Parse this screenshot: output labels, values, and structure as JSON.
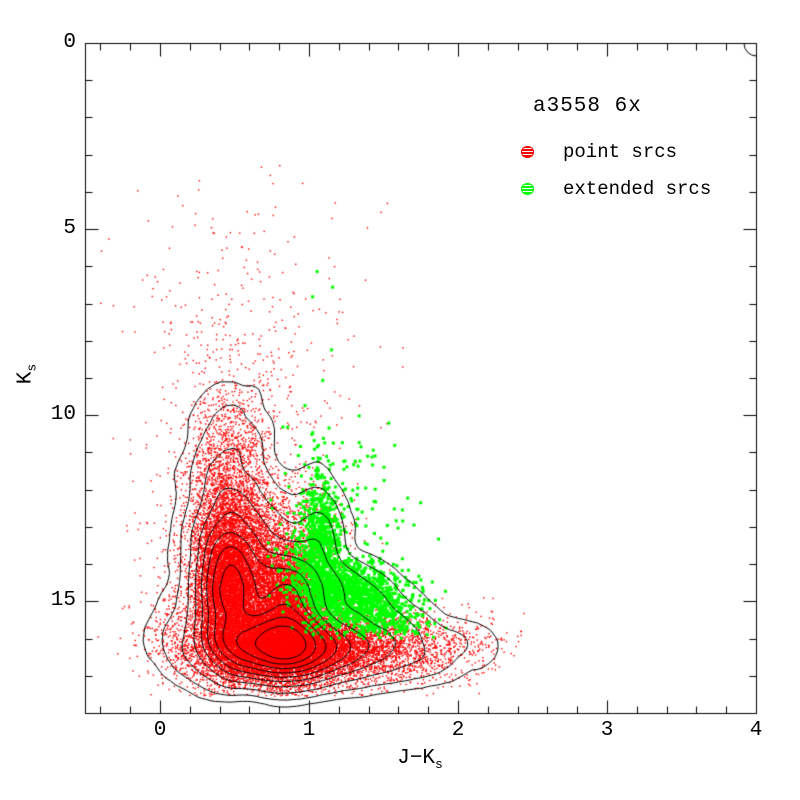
{
  "figure": {
    "background": "#ffffff",
    "frame_color": "#000000"
  },
  "legend": {
    "title": "a3558 6x",
    "items": [
      {
        "label": "point srcs",
        "color": "#ff0000",
        "marker": "striped-circle"
      },
      {
        "label": "extended srcs",
        "color": "#00ff00",
        "marker": "striped-circle"
      }
    ]
  },
  "chart_data": {
    "type": "scatter",
    "title": "a3558 6x",
    "xlabel": "J−Ks",
    "ylabel": "Ks",
    "grid": false,
    "legend_position": "top-right-inside",
    "x_axis": {
      "label_main": "J−K",
      "label_sub": "s",
      "range": [
        -0.5,
        4.0
      ],
      "major_ticks": [
        0,
        1,
        2,
        3,
        4
      ],
      "tick_labels": [
        "0",
        "1",
        "2",
        "3",
        "4"
      ],
      "minor_tick_step": 0.2
    },
    "y_axis": {
      "label_main": "K",
      "label_sub": "s",
      "range": [
        0,
        18
      ],
      "inverted": true,
      "major_ticks": [
        0,
        5,
        10,
        15
      ],
      "tick_labels": [
        "0",
        "5",
        "10",
        "15"
      ],
      "minor_tick_step": 1
    },
    "series": [
      {
        "name": "point srcs",
        "color": "#ff0000",
        "marker_px": 1.4,
        "clip": {
          "x": [
            -0.49,
            2.45
          ],
          "k": [
            3.2,
            17.55
          ]
        },
        "clusters": [
          {
            "n": 520,
            "x": 0.55,
            "sx": 0.42,
            "k": 9.5,
            "sk": 3.0
          },
          {
            "n": 2400,
            "x": 0.46,
            "sx": 0.14,
            "k": 12.3,
            "sk": 1.5
          },
          {
            "n": 7000,
            "x": 0.47,
            "sx": 0.11,
            "k": 14.7,
            "sk": 1.05
          },
          {
            "n": 6200,
            "x": 0.84,
            "sx": 0.13,
            "k": 15.2,
            "sk": 0.95
          },
          {
            "n": 9500,
            "x": 0.8,
            "sx": 0.26,
            "k": 16.25,
            "sk": 0.45
          },
          {
            "n": 3600,
            "x": 1.3,
            "sx": 0.42,
            "k": 16.25,
            "sk": 0.48
          },
          {
            "n": 2200,
            "x": 0.63,
            "sx": 0.26,
            "k": 13.7,
            "sk": 1.1
          },
          {
            "n": 800,
            "x": 0.3,
            "sx": 0.22,
            "k": 15.9,
            "sk": 0.8
          }
        ]
      },
      {
        "name": "extended srcs",
        "color": "#00ff00",
        "marker_px": 3,
        "clip": {
          "x": [
            0.72,
            2.1
          ],
          "k": [
            6.0,
            16.0
          ]
        },
        "clusters": [
          {
            "n": 750,
            "x": 1.07,
            "sx": 0.065,
            "k": 13.5,
            "sk": 1.0,
            "shear": 0
          },
          {
            "n": 1550,
            "x": 1.28,
            "sx": 0.2,
            "k": 14.85,
            "sk": 0.6,
            "shear": 0.18
          },
          {
            "n": 110,
            "x": 1.25,
            "sx": 0.28,
            "k": 12.2,
            "sk": 1.1,
            "shear": 0
          },
          {
            "n": 6,
            "x": 1.12,
            "sx": 0.12,
            "k": 8.3,
            "sk": 1.1,
            "shear": 0
          }
        ]
      }
    ],
    "contours": {
      "color": "#000000",
      "source": "density of all plotted sources",
      "levels_fraction_of_max": [
        0.012,
        0.032,
        0.075,
        0.14,
        0.22,
        0.31,
        0.42,
        0.54,
        0.67,
        0.81
      ]
    }
  }
}
